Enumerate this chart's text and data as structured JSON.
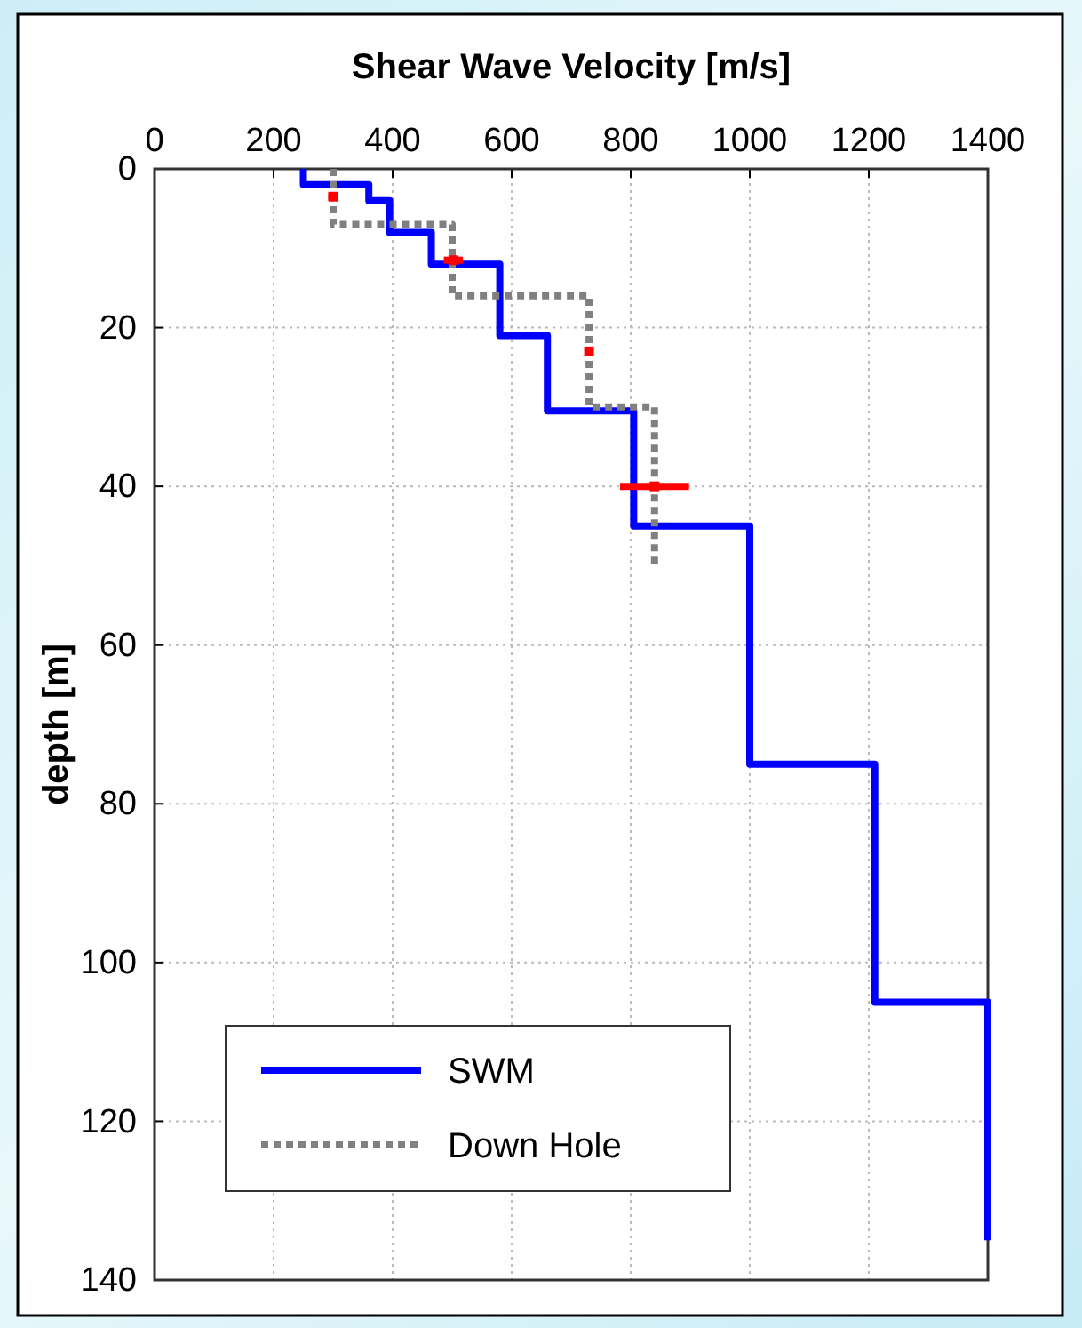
{
  "chart_data": {
    "type": "line",
    "xlabel": "Shear Wave Velocity [m/s]",
    "ylabel": "depth [m]",
    "xlim": [
      0,
      1400
    ],
    "xticks": [
      0,
      200,
      400,
      600,
      800,
      1000,
      1200,
      1400
    ],
    "ylim": [
      140,
      0
    ],
    "yticks": [
      0,
      20,
      40,
      60,
      80,
      100,
      120,
      140
    ],
    "grid": true,
    "legend": "bottom left",
    "series": [
      {
        "name": "SWM",
        "color": "#0000ff",
        "line_style": "solid",
        "x": [
          250,
          250,
          360,
          360,
          395,
          395,
          465,
          465,
          580,
          580,
          660,
          660,
          805,
          805,
          1000,
          1000,
          1210,
          1210,
          1400,
          1400
        ],
        "values": [
          0,
          2,
          2,
          4,
          4,
          8,
          8,
          12,
          12,
          21,
          21,
          30.5,
          30.5,
          45,
          45,
          75,
          75,
          105,
          105,
          135
        ]
      },
      {
        "name": "Down Hole",
        "color": "#808080",
        "line_style": "dotted",
        "x": [
          300,
          300,
          500,
          500,
          730,
          730,
          840,
          840
        ],
        "values": [
          0,
          7,
          7,
          16,
          16,
          30,
          30,
          50
        ]
      },
      {
        "type": "scatter",
        "color": "#ff0000",
        "marker": "square",
        "x": [
          300,
          502,
          730,
          840
        ],
        "values": [
          3.5,
          11.5,
          23,
          40
        ],
        "xerrors": [
          8,
          16,
          6,
          58
        ]
      }
    ]
  }
}
